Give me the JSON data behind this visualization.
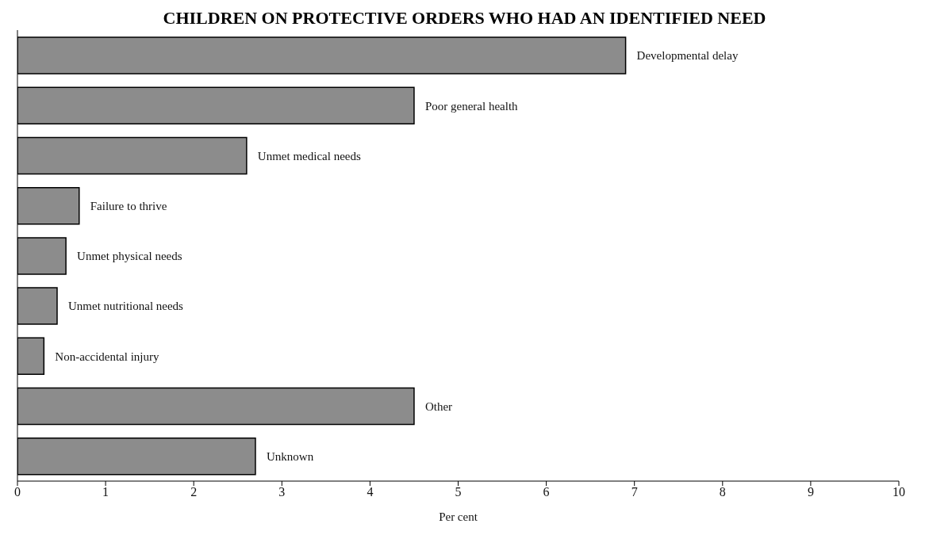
{
  "chart_data": {
    "type": "bar",
    "orientation": "horizontal",
    "title": "CHILDREN ON PROTECTIVE ORDERS WHO HAD AN IDENTIFIED NEED",
    "xlabel": "Per cent",
    "categories": [
      "Developmental delay",
      "Poor general health",
      "Unmet medical needs",
      "Failure to thrive",
      "Unmet physical needs",
      "Unmet nutritional needs",
      "Non-accidental injury",
      "Other",
      "Unknown"
    ],
    "values": [
      6.9,
      4.5,
      2.6,
      0.7,
      0.55,
      0.45,
      0.3,
      4.5,
      2.7
    ],
    "color": "#8c8c8c",
    "xlim": [
      0,
      10
    ],
    "xticks": [
      0,
      1,
      2,
      3,
      4,
      5,
      6,
      7,
      8,
      9,
      10
    ],
    "tick_labels": "x",
    "grid": false
  }
}
